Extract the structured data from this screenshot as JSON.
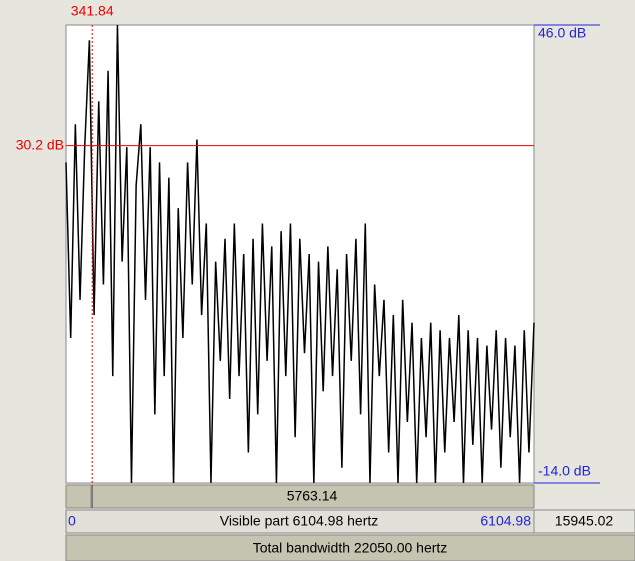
{
  "cursor": {
    "frequency_label": "341.84",
    "frequency": 341.84,
    "level_label": "30.2 dB",
    "level": 30.2
  },
  "axis": {
    "top_label": "46.0 dB",
    "top": 46,
    "bottom_label": "-14.0 dB",
    "bottom": -14,
    "left": 0,
    "right": 6104.98
  },
  "spectrum": {
    "x": [
      0,
      61,
      122,
      183,
      244,
      305,
      366,
      427,
      488,
      549,
      610,
      671,
      732,
      793,
      854,
      915,
      976,
      1037,
      1098,
      1159,
      1220,
      1281,
      1342,
      1403,
      1464,
      1525,
      1586,
      1647,
      1708,
      1769,
      1830,
      1891,
      1952,
      2013,
      2074,
      2135,
      2196,
      2257,
      2318,
      2379,
      2440,
      2501,
      2562,
      2623,
      2684,
      2745,
      2806,
      2867,
      2928,
      2989,
      3050,
      3111,
      3172,
      3233,
      3294,
      3355,
      3416,
      3477,
      3538,
      3599,
      3660,
      3721,
      3782,
      3843,
      3904,
      3965,
      4026,
      4087,
      4148,
      4209,
      4270,
      4331,
      4392,
      4453,
      4514,
      4575,
      4636,
      4697,
      4758,
      4819,
      4880,
      4941,
      5002,
      5063,
      5124,
      5185,
      5246,
      5307,
      5368,
      5429,
      5490,
      5551,
      5612,
      5673,
      5734,
      5795,
      5856,
      5917,
      5978,
      6039,
      6104.98
    ],
    "y": [
      28,
      5,
      33,
      10,
      30,
      44,
      8,
      36,
      12,
      40,
      0,
      46,
      15,
      30,
      -14,
      25,
      33,
      10,
      30,
      -5,
      28,
      0,
      26,
      -14,
      22,
      5,
      28,
      12,
      31,
      8,
      20,
      -14,
      15,
      2,
      18,
      -3,
      20,
      0,
      16,
      -10,
      18,
      -5,
      20,
      2,
      17,
      -14,
      19,
      0,
      20,
      -8,
      18,
      3,
      16,
      -14,
      15,
      -2,
      17,
      0,
      14,
      -12,
      16,
      2,
      18,
      -5,
      20,
      -14,
      12,
      0,
      10,
      -10,
      8,
      -14,
      10,
      -6,
      7,
      -14,
      5,
      -8,
      7,
      -14,
      6,
      -10,
      5,
      -6,
      8,
      -14,
      6,
      -9,
      5,
      -14,
      4,
      -7,
      6,
      -12,
      5,
      -8,
      4,
      -14,
      6,
      -10,
      7
    ]
  },
  "bars": {
    "cursor_right": "5763.14",
    "visible_left": "0",
    "visible_text": "Visible part 6104.98 hertz",
    "visible_right": "6104.98",
    "hidden_right": "15945.02",
    "total": "Total bandwidth 22050.00 hertz"
  }
}
